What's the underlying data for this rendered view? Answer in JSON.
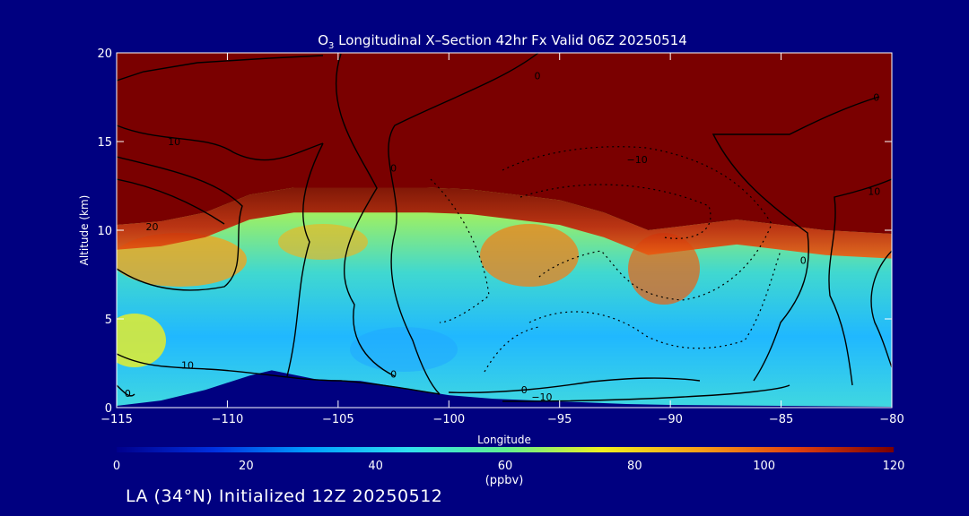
{
  "footer_label": "LA (34°N) Initialized 12Z 20250512",
  "chart_data": {
    "type": "heatmap",
    "title_prefix": "O",
    "title_sub": "3",
    "title_rest": " Longitudinal X–Section 42hr  Fx Valid 06Z 20250514",
    "xlabel": "Longitude",
    "ylabel": "Altitude (km)",
    "xlim": [
      -115,
      -80
    ],
    "ylim": [
      0,
      20
    ],
    "x_ticks": [
      -115,
      -110,
      -105,
      -100,
      -95,
      -90,
      -85,
      -80
    ],
    "x_tick_labels": [
      "−115",
      "−110",
      "−105",
      "−100",
      "−95",
      "−90",
      "−85",
      "−80"
    ],
    "y_ticks": [
      0,
      5,
      10,
      15,
      20
    ],
    "y_tick_labels": [
      "0",
      "5",
      "10",
      "15",
      "20"
    ],
    "colorbar": {
      "label": "(ppbv)",
      "range": [
        0,
        120
      ],
      "ticks": [
        0,
        20,
        40,
        60,
        80,
        100,
        120
      ],
      "tick_labels": [
        "0",
        "20",
        "40",
        "60",
        "80",
        "100",
        "120"
      ],
      "colors": [
        "#00008c",
        "#0030e0",
        "#00a0ff",
        "#30e0f0",
        "#60f090",
        "#f0f020",
        "#f8a018",
        "#e04010",
        "#7a0000"
      ]
    },
    "tropopause_height_km": [
      [
        -115,
        10.3
      ],
      [
        -113,
        10.5
      ],
      [
        -111,
        11.0
      ],
      [
        -109,
        12.0
      ],
      [
        -107,
        12.4
      ],
      [
        -105,
        12.4
      ],
      [
        -103,
        12.4
      ],
      [
        -101,
        12.4
      ],
      [
        -99,
        12.3
      ],
      [
        -97,
        12.0
      ],
      [
        -95,
        11.7
      ],
      [
        -93,
        11.0
      ],
      [
        -91,
        10.0
      ],
      [
        -89,
        10.3
      ],
      [
        -87,
        10.6
      ],
      [
        -85,
        10.3
      ],
      [
        -83,
        10.0
      ],
      [
        -80,
        9.8
      ]
    ],
    "terrain_height_km": [
      [
        -115,
        0.1
      ],
      [
        -113,
        0.4
      ],
      [
        -111,
        1.0
      ],
      [
        -109,
        1.8
      ],
      [
        -108,
        2.1
      ],
      [
        -106,
        1.6
      ],
      [
        -104,
        1.5
      ],
      [
        -102,
        1.1
      ],
      [
        -100,
        0.7
      ],
      [
        -98,
        0.5
      ],
      [
        -96,
        0.4
      ],
      [
        -94,
        0.3
      ],
      [
        -92,
        0.2
      ],
      [
        -90,
        0.15
      ],
      [
        -85,
        0.1
      ],
      [
        -80,
        0.05
      ]
    ],
    "contour_labels": [
      {
        "text": "20",
        "lon": -113.4,
        "alt": 10.0
      },
      {
        "text": "10",
        "lon": -112.4,
        "alt": 14.8
      },
      {
        "text": "10",
        "lon": -111.8,
        "alt": 2.2
      },
      {
        "text": "0",
        "lon": -114.5,
        "alt": 0.6
      },
      {
        "text": "0",
        "lon": -102.5,
        "alt": 1.7
      },
      {
        "text": "0",
        "lon": -102.5,
        "alt": 13.3
      },
      {
        "text": "0",
        "lon": -96.0,
        "alt": 18.5
      },
      {
        "text": "−10",
        "lon": -91.5,
        "alt": 13.8
      },
      {
        "text": "0",
        "lon": -96.6,
        "alt": 0.8
      },
      {
        "text": "−10",
        "lon": -95.8,
        "alt": 0.4
      },
      {
        "text": "0",
        "lon": -84.0,
        "alt": 8.1
      },
      {
        "text": "0",
        "lon": -80.7,
        "alt": 17.3
      },
      {
        "text": "10",
        "lon": -80.8,
        "alt": 12.0
      }
    ]
  }
}
